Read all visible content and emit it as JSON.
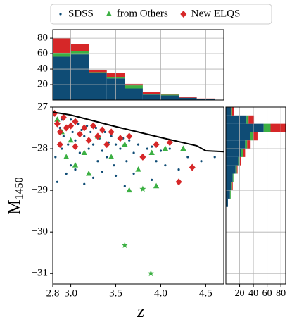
{
  "chart_data": [
    {
      "type": "scatter",
      "xlabel": "z",
      "ylabel": "M",
      "ylabel_sub": "1450",
      "xlim": [
        2.8,
        4.7
      ],
      "ylim": [
        -27,
        -31.25
      ],
      "xticks": [
        2.8,
        {
          "value": 3,
          "label": "3.0"
        },
        3.5,
        {
          "value": 4,
          "label": "4.0"
        },
        4.5
      ],
      "yticks": [
        {
          "value": -27,
          "label": "−27"
        },
        {
          "value": -28,
          "label": "−28"
        },
        {
          "value": -29,
          "label": "−29"
        },
        {
          "value": -30,
          "label": "−30"
        },
        {
          "value": -31,
          "label": "−31"
        }
      ],
      "grid": false,
      "legend": "top",
      "series": [
        {
          "name": "SDSS",
          "color": "#0f4c75",
          "marker": "dot",
          "x": [
            2.82,
            2.85,
            2.88,
            2.9,
            2.92,
            2.95,
            2.97,
            3.0,
            3.02,
            3.05,
            3.08,
            3.1,
            3.12,
            3.15,
            3.18,
            3.2,
            3.22,
            3.25,
            3.28,
            3.3,
            3.32,
            3.35,
            3.38,
            3.4,
            3.42,
            3.45,
            3.48,
            3.5,
            3.55,
            3.58,
            3.62,
            3.65,
            3.7,
            3.75,
            3.8,
            3.85,
            3.9,
            3.95,
            4.0,
            4.05,
            4.1,
            4.2,
            4.3,
            4.45,
            2.85,
            2.95,
            3.05,
            3.15,
            3.25,
            3.35,
            3.5,
            3.7,
            3.9,
            2.83,
            2.9,
            3.0,
            4.6,
            3.6
          ],
          "y": [
            -27.2,
            -27.35,
            -27.5,
            -27.3,
            -27.7,
            -27.45,
            -27.9,
            -27.3,
            -27.6,
            -27.8,
            -27.4,
            -28.1,
            -27.55,
            -27.7,
            -27.45,
            -28.0,
            -27.6,
            -27.9,
            -27.5,
            -28.3,
            -27.75,
            -28.05,
            -27.6,
            -28.2,
            -27.85,
            -27.7,
            -28.4,
            -27.9,
            -28.0,
            -27.75,
            -28.3,
            -27.8,
            -28.1,
            -27.9,
            -28.2,
            -28.0,
            -27.95,
            -28.3,
            -28.05,
            -28.4,
            -28.0,
            -28.5,
            -28.2,
            -28.3,
            -28.8,
            -28.6,
            -28.5,
            -28.85,
            -28.7,
            -28.55,
            -28.65,
            -28.6,
            -28.75,
            -28.2,
            -28.0,
            -28.4,
            -28.2,
            -28.9
          ]
        },
        {
          "name": "from Others",
          "color": "#3cb043",
          "marker": "triangle",
          "x": [
            2.85,
            2.9,
            3.0,
            3.05,
            3.15,
            3.3,
            3.45,
            3.6,
            3.65,
            3.75,
            3.9,
            3.95,
            4.05,
            4.25,
            3.2,
            2.95
          ],
          "y": [
            -27.3,
            -27.6,
            -27.8,
            -28.4,
            -28.1,
            -27.7,
            -28.2,
            -27.9,
            -29.0,
            -28.5,
            -28.1,
            -28.9,
            -28.0,
            -28.0,
            -28.6,
            -28.2
          ]
        },
        {
          "name": "New ELQS",
          "color": "#d62728",
          "marker": "diamond",
          "x": [
            2.82,
            2.85,
            2.88,
            2.92,
            2.95,
            3.0,
            3.05,
            3.1,
            3.15,
            3.2,
            3.25,
            3.3,
            3.35,
            3.4,
            3.45,
            3.55,
            3.65,
            3.8,
            3.95,
            4.1,
            4.2,
            4.35,
            2.88,
            3.05
          ],
          "y": [
            -27.15,
            -27.4,
            -27.6,
            -27.25,
            -27.5,
            -27.45,
            -27.35,
            -27.65,
            -27.5,
            -27.8,
            -27.45,
            -27.7,
            -27.55,
            -27.9,
            -27.6,
            -27.75,
            -27.7,
            -28.2,
            -27.9,
            -27.85,
            -28.8,
            -28.45,
            -27.9,
            -27.95
          ]
        },
        {
          "color": "#3cb043",
          "marker": "star",
          "x": [
            3.8,
            3.6,
            3.89
          ],
          "y": [
            -28.97,
            -30.32,
            -31.0
          ]
        },
        {
          "color": "#000000",
          "marker": "line",
          "x": [
            2.8,
            3.0,
            3.5,
            4.0,
            4.4,
            4.5,
            4.7
          ],
          "y": [
            -27.12,
            -27.19,
            -27.47,
            -27.73,
            -27.93,
            -28.05,
            -28.07
          ]
        }
      ]
    },
    {
      "type": "histogram",
      "orientation": "vertical",
      "bins": [
        2.8,
        3.0,
        3.2,
        3.4,
        3.6,
        3.8,
        4.0,
        4.2,
        4.4,
        4.6
      ],
      "xlim": [
        2.8,
        4.7
      ],
      "xticks": [
        3,
        3.5,
        4,
        4.5
      ],
      "ylim": [
        0,
        91
      ],
      "yticks": [
        20,
        40,
        60,
        80
      ],
      "grid": true,
      "series": [
        {
          "color": "#0f4c75",
          "values": [
            56,
            59,
            35,
            28,
            15,
            7,
            6,
            3,
            1
          ]
        },
        {
          "color": "#3cb043",
          "values": [
            5,
            4,
            1,
            2,
            4,
            1,
            1,
            0,
            0
          ]
        },
        {
          "color": "#d62728",
          "values": [
            19,
            9,
            3,
            5,
            2,
            2,
            1,
            1,
            1
          ]
        }
      ]
    },
    {
      "type": "histogram",
      "orientation": "horizontal",
      "bins": [
        -27.0,
        -27.2,
        -27.4,
        -27.6,
        -27.8,
        -28.0,
        -28.2,
        -28.4,
        -28.6,
        -28.8,
        -29.0,
        -29.2,
        -29.4
      ],
      "ylim": [
        -27,
        -31.25
      ],
      "yticks": [
        -28,
        -29,
        -30,
        -31
      ],
      "xlim": [
        0,
        87
      ],
      "xticks": [
        20,
        40,
        60,
        80
      ],
      "grid": true,
      "series": [
        {
          "color": "#0f4c75",
          "values": [
            8,
            30,
            55,
            35,
            28,
            22,
            18,
            14,
            10,
            8,
            6,
            3
          ]
        },
        {
          "color": "#3cb043",
          "values": [
            1,
            3,
            10,
            4,
            3,
            3,
            2,
            2,
            1,
            1,
            1,
            0
          ]
        },
        {
          "color": "#d62728",
          "values": [
            3,
            8,
            22,
            7,
            5,
            3,
            2,
            1,
            0,
            1,
            0,
            0
          ]
        }
      ]
    }
  ]
}
